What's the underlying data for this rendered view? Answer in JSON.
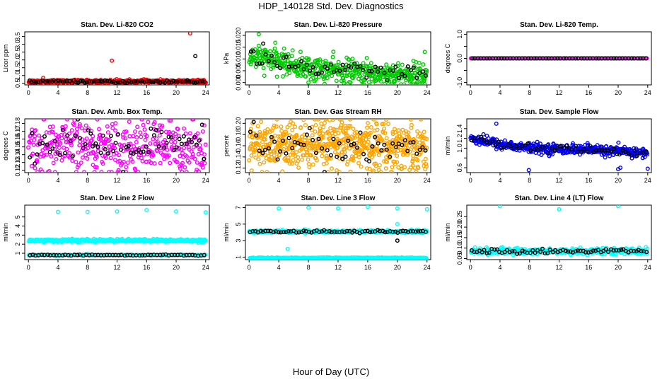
{
  "figure": {
    "title": "HDP_140128  Std. Dev. Diagnostics",
    "xlabel": "Hour of Day (UTC)"
  },
  "chart_data": [
    {
      "type": "scatter",
      "title": "Stan. Dev. Li-820 CO2",
      "ylabel": "Licor ppm",
      "xlim": [
        -0.5,
        24.5
      ],
      "ylim": [
        0.4,
        3.8
      ],
      "xticks": [
        0,
        4,
        8,
        12,
        16,
        20,
        24
      ],
      "yticks": [
        0.5,
        1.0,
        1.5,
        2.0,
        2.5,
        3.0,
        3.5
      ],
      "ytick_labels": [
        "0.5",
        "1.0",
        "1.5",
        "2.0",
        "2.5",
        "3.0",
        "3.5"
      ],
      "series": [
        {
          "color": "#ff0000",
          "base": 0.62,
          "noise": 0.05,
          "n": 400,
          "outliers": [
            [
              2.0,
              0.85
            ],
            [
              11.3,
              1.95
            ],
            [
              11.7,
              0.7
            ],
            [
              21.9,
              3.7
            ],
            [
              22.3,
              0.7
            ]
          ]
        },
        {
          "color": "#000000",
          "base": 0.6,
          "noise": 0.04,
          "n": 80,
          "outliers": [
            [
              22.6,
              2.25
            ],
            [
              21.5,
              0.7
            ]
          ]
        }
      ]
    },
    {
      "type": "scatter",
      "title": "Stan. Dev. Li-820 Pressure",
      "ylabel": "kPa",
      "xlim": [
        -0.5,
        24.5
      ],
      "ylim": [
        -0.001,
        0.0215
      ],
      "xticks": [
        0,
        4,
        8,
        12,
        16,
        20,
        24
      ],
      "yticks": [
        0.0,
        0.005,
        0.01,
        0.015,
        0.02
      ],
      "ytick_labels": [
        "0.000",
        "0.005",
        "0.010",
        "0.015",
        "0.020"
      ],
      "series": [
        {
          "color": "#00cc00",
          "trend": [
            [
              0,
              0.011
            ],
            [
              4,
              0.009
            ],
            [
              8,
              0.006
            ],
            [
              16,
              0.004
            ],
            [
              24,
              0.003
            ]
          ],
          "noise": 0.0025,
          "n": 500,
          "outliers": [
            [
              1.3,
              0.0205
            ],
            [
              23.7,
              0.013
            ],
            [
              8.0,
              0.0
            ]
          ]
        },
        {
          "color": "#000000",
          "trend": [
            [
              0,
              0.011
            ],
            [
              4,
              0.009
            ],
            [
              8,
              0.006
            ],
            [
              16,
              0.004
            ],
            [
              24,
              0.003
            ]
          ],
          "noise": 0.002,
          "n": 60,
          "outliers": [
            [
              1.9,
              0.0165
            ]
          ]
        }
      ]
    },
    {
      "type": "scatter",
      "title": "Stan. Dev. Li-820 Temp.",
      "ylabel": "degrees C",
      "xlim": [
        -0.5,
        24.5
      ],
      "ylim": [
        -1.1,
        1.1
      ],
      "xticks": [
        0,
        4,
        8,
        12,
        16,
        20,
        24
      ],
      "yticks": [
        -1.0,
        -0.5,
        0.0,
        0.5,
        1.0
      ],
      "ytick_labels": [
        "-1.0",
        "",
        "0.0",
        "",
        "1.0"
      ],
      "series": [
        {
          "color": "#ff00ff",
          "base": 0.0,
          "noise": 0.0,
          "n": 160,
          "outliers": []
        },
        {
          "color": "#000000",
          "base": 0.0,
          "noise": 0.0,
          "n": 60,
          "outliers": []
        }
      ]
    },
    {
      "type": "scatter",
      "title": "Stan. Dev. Amb. Box Temp.",
      "ylabel": "degrees C",
      "xlim": [
        -0.5,
        24.5
      ],
      "ylim": [
        0.117,
        0.186
      ],
      "xticks": [
        0,
        4,
        8,
        12,
        16,
        20,
        24
      ],
      "yticks": [
        0.12,
        0.13,
        0.14,
        0.15,
        0.16,
        0.17,
        0.18
      ],
      "ytick_labels": [
        "0.12",
        "0.13",
        "0.14",
        "0.15",
        "0.16",
        "0.17",
        "0.18"
      ],
      "series": [
        {
          "color": "#ff00ff",
          "base": 0.15,
          "noise": 0.017,
          "n": 400,
          "outliers": []
        },
        {
          "color": "#000000",
          "base": 0.15,
          "noise": 0.013,
          "n": 70,
          "outliers": []
        }
      ]
    },
    {
      "type": "scatter",
      "title": "Stan. Dev. Gas Stream RH",
      "ylabel": "percent",
      "xlim": [
        -0.5,
        24.5
      ],
      "ylim": [
        0.112,
        0.208
      ],
      "xticks": [
        0,
        4,
        8,
        12,
        16,
        20,
        24
      ],
      "yticks": [
        0.12,
        0.14,
        0.16,
        0.18,
        0.2
      ],
      "ytick_labels": [
        "0.12",
        "0.14",
        "0.16",
        "0.18",
        "0.20"
      ],
      "series": [
        {
          "color": "#ffa500",
          "base": 0.16,
          "noise": 0.022,
          "n": 650,
          "outliers": []
        },
        {
          "color": "#000000",
          "base": 0.16,
          "noise": 0.015,
          "n": 60,
          "outliers": []
        }
      ]
    },
    {
      "type": "scatter",
      "title": "Stan. Dev. Sample Flow",
      "ylabel": "ml/min",
      "xlim": [
        -0.5,
        24.5
      ],
      "ylim": [
        0.5,
        1.6
      ],
      "xticks": [
        0,
        4,
        8,
        12,
        16,
        20,
        24
      ],
      "yticks": [
        0.6,
        0.8,
        1.0,
        1.2,
        1.4
      ],
      "ytick_labels": [
        "0.6",
        "",
        "1.0",
        "1.2",
        "1.4"
      ],
      "series": [
        {
          "color": "#0000ff",
          "trend": [
            [
              0,
              1.2
            ],
            [
              4,
              1.08
            ],
            [
              8,
              1.0
            ],
            [
              16,
              0.97
            ],
            [
              24,
              0.9
            ]
          ],
          "noise": 0.05,
          "n": 450,
          "outliers": [
            [
              3.5,
              1.5
            ],
            [
              7.9,
              0.55
            ],
            [
              20.0,
              0.57
            ],
            [
              20.3,
              0.6
            ],
            [
              24.0,
              0.58
            ]
          ]
        },
        {
          "color": "#000000",
          "trend": [
            [
              0,
              1.2
            ],
            [
              4,
              1.08
            ],
            [
              8,
              1.0
            ],
            [
              16,
              0.97
            ],
            [
              24,
              0.9
            ]
          ],
          "noise": 0.04,
          "n": 60,
          "outliers": []
        }
      ]
    },
    {
      "type": "scatter",
      "title": "Stan. Dev. Line 2 Flow",
      "ylabel": "ml/min",
      "xlim": [
        -0.5,
        24.5
      ],
      "ylim": [
        0.3,
        6.3
      ],
      "xticks": [
        0,
        4,
        8,
        12,
        16,
        20,
        24
      ],
      "yticks": [
        1,
        2,
        3,
        4,
        5
      ],
      "ytick_labels": [
        "1",
        "2",
        "3",
        "4",
        "5"
      ],
      "series": [
        {
          "color": "#00ffff",
          "base": 2.4,
          "noise": 0.08,
          "n": 400,
          "outliers": [
            [
              4.0,
              5.55
            ],
            [
              8.0,
              5.55
            ],
            [
              12.0,
              5.6
            ],
            [
              16.0,
              5.75
            ],
            [
              20.0,
              5.6
            ],
            [
              24.0,
              5.5
            ]
          ]
        },
        {
          "color": "#00ffff",
          "base": 0.8,
          "noise": 0.03,
          "n": 300,
          "outliers": []
        },
        {
          "color": "#000000",
          "base": 0.8,
          "noise": 0.03,
          "n": 60,
          "outliers": []
        }
      ]
    },
    {
      "type": "scatter",
      "title": "Stan. Dev. Line 3 Flow",
      "ylabel": "ml/min",
      "xlim": [
        -0.5,
        24.5
      ],
      "ylim": [
        0.7,
        7.3
      ],
      "xticks": [
        0,
        4,
        8,
        12,
        16,
        20,
        24
      ],
      "yticks": [
        1,
        3,
        5,
        7
      ],
      "ytick_labels": [
        "1",
        "3",
        "5",
        "7"
      ],
      "series": [
        {
          "color": "#00ffff",
          "base": 4.1,
          "noise": 0.08,
          "n": 350,
          "outliers": [
            [
              4.0,
              6.9
            ],
            [
              5.2,
              2.0
            ],
            [
              8.0,
              7.0
            ],
            [
              12.0,
              6.9
            ],
            [
              16.0,
              7.1
            ],
            [
              20.0,
              5.0
            ],
            [
              20.0,
              6.9
            ],
            [
              24.0,
              6.8
            ]
          ]
        },
        {
          "color": "#00ffff",
          "base": 0.9,
          "noise": 0.03,
          "n": 350,
          "outliers": []
        },
        {
          "color": "#000000",
          "base": 4.1,
          "noise": 0.07,
          "n": 70,
          "outliers": [
            [
              20.0,
              3.0
            ]
          ]
        }
      ]
    },
    {
      "type": "scatter",
      "title": "Stan. Dev. Line 4 (LT) Flow",
      "ylabel": "ml/min",
      "xlim": [
        -0.5,
        24.5
      ],
      "ylim": [
        0.045,
        0.305
      ],
      "xticks": [
        0,
        4,
        8,
        12,
        16,
        20,
        24
      ],
      "yticks": [
        0.05,
        0.1,
        0.15,
        0.2,
        0.25
      ],
      "ytick_labels": [
        "0.05",
        "0.10",
        "0.15",
        "0.20",
        "0.25"
      ],
      "series": [
        {
          "color": "#00ffff",
          "base": 0.085,
          "noise": 0.007,
          "n": 400,
          "outliers": [
            [
              4.0,
              0.3
            ],
            [
              12.0,
              0.285
            ],
            [
              20.0,
              0.3
            ]
          ]
        },
        {
          "color": "#000000",
          "base": 0.085,
          "noise": 0.006,
          "n": 70,
          "outliers": []
        }
      ]
    }
  ]
}
